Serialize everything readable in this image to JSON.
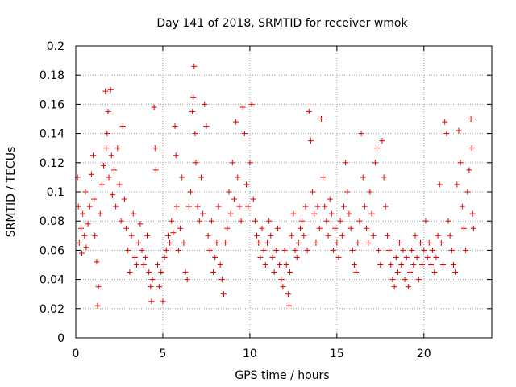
{
  "chart_data": {
    "type": "scatter",
    "title": "Day 141 of 2018, SRMTID for receiver wmok",
    "xlabel": "GPS time / hours",
    "ylabel": "SRMTID / TECUs",
    "xlim": [
      0,
      23.9
    ],
    "ylim": [
      0,
      0.2
    ],
    "xticks": [
      0,
      5,
      10,
      15,
      20
    ],
    "xtick_labels": [
      "0",
      "5",
      "10",
      "15",
      "20"
    ],
    "yticks": [
      0,
      0.02,
      0.04,
      0.06,
      0.08,
      0.1,
      0.12,
      0.14,
      0.16,
      0.18,
      0.2
    ],
    "ytick_labels": [
      "0",
      "0.02",
      "0.04",
      "0.06",
      "0.08",
      "0.1",
      "0.12",
      "0.14",
      "0.16",
      "0.18",
      "0.2"
    ],
    "grid": true,
    "marker": "+",
    "color": "#e00000",
    "series": [
      {
        "name": "SRMTID",
        "points": [
          [
            0.1,
            0.11
          ],
          [
            0.15,
            0.09
          ],
          [
            0.2,
            0.065
          ],
          [
            0.3,
            0.075
          ],
          [
            0.35,
            0.058
          ],
          [
            0.4,
            0.085
          ],
          [
            0.5,
            0.07
          ],
          [
            0.55,
            0.1
          ],
          [
            0.6,
            0.062
          ],
          [
            0.7,
            0.078
          ],
          [
            0.8,
            0.09
          ],
          [
            0.9,
            0.112
          ],
          [
            1.0,
            0.125
          ],
          [
            1.05,
            0.095
          ],
          [
            1.1,
            0.07
          ],
          [
            1.2,
            0.052
          ],
          [
            1.25,
            0.022
          ],
          [
            1.3,
            0.035
          ],
          [
            1.4,
            0.085
          ],
          [
            1.5,
            0.105
          ],
          [
            1.6,
            0.118
          ],
          [
            1.7,
            0.169
          ],
          [
            1.75,
            0.13
          ],
          [
            1.8,
            0.14
          ],
          [
            1.85,
            0.155
          ],
          [
            1.9,
            0.11
          ],
          [
            2.0,
            0.17
          ],
          [
            2.05,
            0.125
          ],
          [
            2.1,
            0.098
          ],
          [
            2.2,
            0.115
          ],
          [
            2.3,
            0.09
          ],
          [
            2.4,
            0.13
          ],
          [
            2.5,
            0.105
          ],
          [
            2.6,
            0.08
          ],
          [
            2.7,
            0.145
          ],
          [
            2.8,
            0.095
          ],
          [
            2.9,
            0.075
          ],
          [
            3.0,
            0.06
          ],
          [
            3.1,
            0.045
          ],
          [
            3.2,
            0.07
          ],
          [
            3.3,
            0.085
          ],
          [
            3.4,
            0.055
          ],
          [
            3.5,
            0.05
          ],
          [
            3.6,
            0.065
          ],
          [
            3.7,
            0.078
          ],
          [
            3.8,
            0.06
          ],
          [
            3.9,
            0.05
          ],
          [
            4.0,
            0.055
          ],
          [
            4.1,
            0.07
          ],
          [
            4.2,
            0.045
          ],
          [
            4.3,
            0.035
          ],
          [
            4.35,
            0.025
          ],
          [
            4.4,
            0.04
          ],
          [
            4.5,
            0.158
          ],
          [
            4.55,
            0.13
          ],
          [
            4.6,
            0.115
          ],
          [
            4.7,
            0.05
          ],
          [
            4.8,
            0.035
          ],
          [
            4.9,
            0.045
          ],
          [
            5.0,
            0.025
          ],
          [
            5.1,
            0.055
          ],
          [
            5.2,
            0.06
          ],
          [
            5.3,
            0.07
          ],
          [
            5.4,
            0.065
          ],
          [
            5.5,
            0.08
          ],
          [
            5.6,
            0.072
          ],
          [
            5.7,
            0.145
          ],
          [
            5.75,
            0.125
          ],
          [
            5.8,
            0.09
          ],
          [
            5.9,
            0.06
          ],
          [
            6.0,
            0.075
          ],
          [
            6.1,
            0.11
          ],
          [
            6.2,
            0.065
          ],
          [
            6.3,
            0.045
          ],
          [
            6.4,
            0.04
          ],
          [
            6.5,
            0.09
          ],
          [
            6.6,
            0.1
          ],
          [
            6.7,
            0.155
          ],
          [
            6.75,
            0.165
          ],
          [
            6.8,
            0.186
          ],
          [
            6.85,
            0.14
          ],
          [
            6.9,
            0.12
          ],
          [
            7.0,
            0.09
          ],
          [
            7.1,
            0.08
          ],
          [
            7.2,
            0.11
          ],
          [
            7.3,
            0.085
          ],
          [
            7.4,
            0.16
          ],
          [
            7.5,
            0.145
          ],
          [
            7.6,
            0.07
          ],
          [
            7.7,
            0.06
          ],
          [
            7.8,
            0.08
          ],
          [
            7.9,
            0.045
          ],
          [
            8.0,
            0.055
          ],
          [
            8.1,
            0.065
          ],
          [
            8.2,
            0.09
          ],
          [
            8.3,
            0.05
          ],
          [
            8.4,
            0.04
          ],
          [
            8.5,
            0.03
          ],
          [
            8.6,
            0.065
          ],
          [
            8.7,
            0.075
          ],
          [
            8.8,
            0.1
          ],
          [
            8.9,
            0.085
          ],
          [
            9.0,
            0.12
          ],
          [
            9.1,
            0.095
          ],
          [
            9.2,
            0.148
          ],
          [
            9.3,
            0.11
          ],
          [
            9.4,
            0.09
          ],
          [
            9.5,
            0.08
          ],
          [
            9.6,
            0.158
          ],
          [
            9.7,
            0.14
          ],
          [
            9.8,
            0.105
          ],
          [
            9.9,
            0.09
          ],
          [
            10.0,
            0.12
          ],
          [
            10.1,
            0.16
          ],
          [
            10.2,
            0.095
          ],
          [
            10.3,
            0.08
          ],
          [
            10.4,
            0.07
          ],
          [
            10.5,
            0.065
          ],
          [
            10.6,
            0.055
          ],
          [
            10.7,
            0.075
          ],
          [
            10.8,
            0.06
          ],
          [
            10.9,
            0.05
          ],
          [
            11.0,
            0.065
          ],
          [
            11.1,
            0.08
          ],
          [
            11.2,
            0.07
          ],
          [
            11.3,
            0.055
          ],
          [
            11.4,
            0.045
          ],
          [
            11.5,
            0.06
          ],
          [
            11.6,
            0.075
          ],
          [
            11.7,
            0.05
          ],
          [
            11.8,
            0.04
          ],
          [
            11.9,
            0.035
          ],
          [
            12.0,
            0.06
          ],
          [
            12.1,
            0.05
          ],
          [
            12.2,
            0.03
          ],
          [
            12.25,
            0.022
          ],
          [
            12.3,
            0.045
          ],
          [
            12.4,
            0.07
          ],
          [
            12.5,
            0.085
          ],
          [
            12.6,
            0.06
          ],
          [
            12.7,
            0.055
          ],
          [
            12.8,
            0.065
          ],
          [
            12.9,
            0.075
          ],
          [
            13.0,
            0.08
          ],
          [
            13.1,
            0.07
          ],
          [
            13.2,
            0.09
          ],
          [
            13.3,
            0.06
          ],
          [
            13.4,
            0.155
          ],
          [
            13.5,
            0.135
          ],
          [
            13.6,
            0.1
          ],
          [
            13.7,
            0.085
          ],
          [
            13.8,
            0.065
          ],
          [
            13.9,
            0.09
          ],
          [
            14.0,
            0.075
          ],
          [
            14.1,
            0.15
          ],
          [
            14.2,
            0.11
          ],
          [
            14.3,
            0.09
          ],
          [
            14.4,
            0.08
          ],
          [
            14.5,
            0.07
          ],
          [
            14.6,
            0.095
          ],
          [
            14.7,
            0.085
          ],
          [
            14.8,
            0.06
          ],
          [
            14.9,
            0.075
          ],
          [
            15.0,
            0.065
          ],
          [
            15.1,
            0.055
          ],
          [
            15.2,
            0.08
          ],
          [
            15.3,
            0.07
          ],
          [
            15.4,
            0.09
          ],
          [
            15.5,
            0.12
          ],
          [
            15.6,
            0.1
          ],
          [
            15.7,
            0.085
          ],
          [
            15.8,
            0.075
          ],
          [
            15.9,
            0.06
          ],
          [
            16.0,
            0.05
          ],
          [
            16.1,
            0.045
          ],
          [
            16.2,
            0.065
          ],
          [
            16.3,
            0.08
          ],
          [
            16.4,
            0.14
          ],
          [
            16.5,
            0.11
          ],
          [
            16.6,
            0.09
          ],
          [
            16.7,
            0.075
          ],
          [
            16.8,
            0.065
          ],
          [
            16.9,
            0.1
          ],
          [
            17.0,
            0.085
          ],
          [
            17.1,
            0.07
          ],
          [
            17.2,
            0.12
          ],
          [
            17.3,
            0.13
          ],
          [
            17.4,
            0.06
          ],
          [
            17.5,
            0.05
          ],
          [
            17.6,
            0.135
          ],
          [
            17.7,
            0.11
          ],
          [
            17.8,
            0.09
          ],
          [
            17.9,
            0.07
          ],
          [
            18.0,
            0.06
          ],
          [
            18.1,
            0.05
          ],
          [
            18.2,
            0.04
          ],
          [
            18.3,
            0.035
          ],
          [
            18.4,
            0.055
          ],
          [
            18.5,
            0.045
          ],
          [
            18.6,
            0.065
          ],
          [
            18.7,
            0.05
          ],
          [
            18.8,
            0.06
          ],
          [
            18.9,
            0.04
          ],
          [
            19.0,
            0.055
          ],
          [
            19.1,
            0.035
          ],
          [
            19.2,
            0.045
          ],
          [
            19.3,
            0.06
          ],
          [
            19.4,
            0.05
          ],
          [
            19.5,
            0.07
          ],
          [
            19.6,
            0.055
          ],
          [
            19.7,
            0.04
          ],
          [
            19.8,
            0.065
          ],
          [
            19.9,
            0.05
          ],
          [
            20.0,
            0.06
          ],
          [
            20.1,
            0.08
          ],
          [
            20.2,
            0.055
          ],
          [
            20.3,
            0.065
          ],
          [
            20.4,
            0.05
          ],
          [
            20.5,
            0.06
          ],
          [
            20.6,
            0.045
          ],
          [
            20.7,
            0.055
          ],
          [
            20.8,
            0.07
          ],
          [
            20.9,
            0.105
          ],
          [
            21.0,
            0.065
          ],
          [
            21.1,
            0.05
          ],
          [
            21.2,
            0.148
          ],
          [
            21.3,
            0.14
          ],
          [
            21.4,
            0.08
          ],
          [
            21.5,
            0.07
          ],
          [
            21.6,
            0.06
          ],
          [
            21.7,
            0.05
          ],
          [
            21.8,
            0.045
          ],
          [
            21.9,
            0.105
          ],
          [
            22.0,
            0.142
          ],
          [
            22.1,
            0.12
          ],
          [
            22.2,
            0.09
          ],
          [
            22.3,
            0.075
          ],
          [
            22.4,
            0.06
          ],
          [
            22.5,
            0.1
          ],
          [
            22.6,
            0.115
          ],
          [
            22.7,
            0.15
          ],
          [
            22.75,
            0.13
          ],
          [
            22.8,
            0.085
          ],
          [
            22.85,
            0.075
          ]
        ]
      }
    ]
  }
}
